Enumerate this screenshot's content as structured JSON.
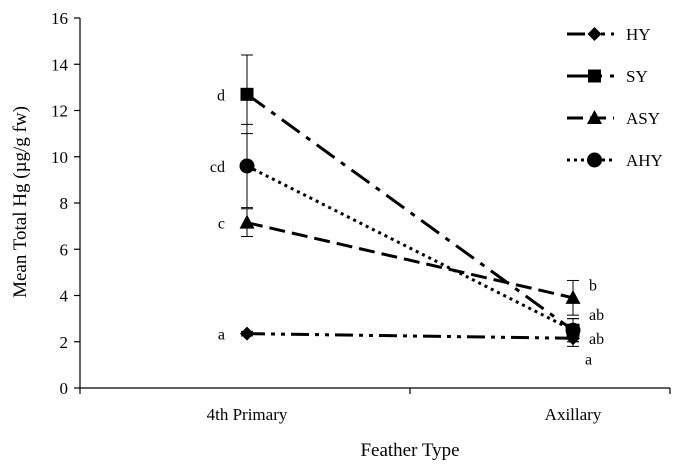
{
  "chart_data": {
    "type": "line",
    "xlabel": "Feather Type",
    "ylabel": "Mean Total Hg (µg/g fw)",
    "categories": [
      "4th Primary",
      "Axillary"
    ],
    "ylim": [
      0,
      16
    ],
    "yticks": [
      0,
      2,
      4,
      6,
      8,
      10,
      12,
      14,
      16
    ],
    "grid": false,
    "legend_position": "top-right",
    "series": [
      {
        "name": "HY",
        "marker": "diamond",
        "dash": "dash-dot-dot",
        "values": [
          2.35,
          2.15
        ],
        "err": [
          0.1,
          0.35
        ],
        "letters": [
          "a",
          "a"
        ]
      },
      {
        "name": "SY",
        "marker": "square",
        "dash": "long-dash-dot",
        "values": [
          12.7,
          2.5
        ],
        "err": [
          1.7,
          0.5
        ],
        "letters": [
          "d",
          "ab"
        ]
      },
      {
        "name": "ASY",
        "marker": "triangle",
        "dash": "dash",
        "values": [
          7.15,
          3.9
        ],
        "err": [
          0.6,
          0.75
        ],
        "letters": [
          "c",
          "b"
        ]
      },
      {
        "name": "AHY",
        "marker": "circle",
        "dash": "dot",
        "values": [
          9.6,
          2.5
        ],
        "err": [
          1.8,
          0.5
        ],
        "letters": [
          "cd",
          "ab"
        ]
      }
    ],
    "legend_order": [
      "HY",
      "SY",
      "ASY",
      "AHY"
    ]
  }
}
